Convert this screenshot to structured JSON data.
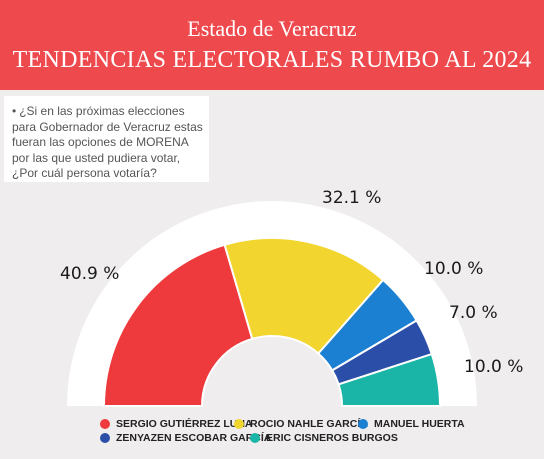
{
  "header": {
    "line1": "Estado de Veracruz",
    "line2": "TENDENCIAS ELECTORALES RUMBO AL 2024",
    "color": "#ee4a4e"
  },
  "question": {
    "bullet": "•",
    "text": "¿Si en las próximas elecciones para Gobernador de Veracruz estas fueran las opciones de MORENA por las que usted pudiera votar, ¿Por cuál persona  votaría?"
  },
  "chart_data": {
    "type": "pie",
    "subtype": "semicircle-donut",
    "categories": [
      "SERGIO GUTIÉRREZ LUNA",
      "ROCIO NAHLE GARCÍA",
      "MANUEL HUERTA",
      "ZENYAZEN ESCOBAR GARCÍA",
      "ERIC CISNEROS BURGOS"
    ],
    "values": [
      40.9,
      32.1,
      10.0,
      7.0,
      10.0
    ],
    "labels": [
      "40.9 %",
      "32.1 %",
      "10.0 %",
      "7.0 %",
      "10.0 %"
    ],
    "colors": [
      "#ee3a3c",
      "#f2d52e",
      "#1b7fd2",
      "#2b4fa8",
      "#1bb5a7"
    ],
    "legend_position": "bottom"
  }
}
